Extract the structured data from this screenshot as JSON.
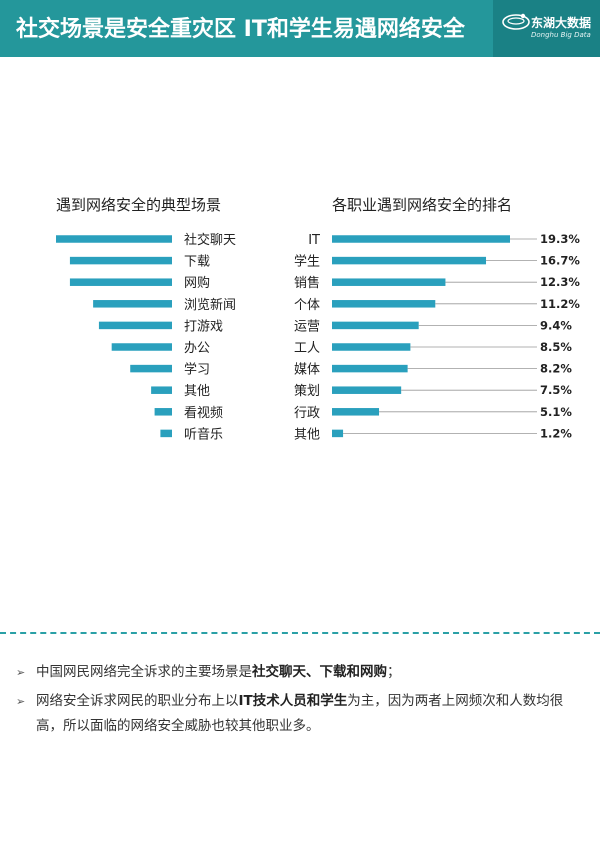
{
  "header": {
    "title": "社交场景是安全重灾区 IT和学生易遇网络安全",
    "logo_cn": "东湖大数据",
    "logo_en": "Donghu Big Data"
  },
  "colors": {
    "header_bg": "#24979b",
    "bar": "#2aa0bd",
    "divider": "#2aa0a6"
  },
  "chart_data": [
    {
      "type": "bar",
      "title": "遇到网络安全的典型场景",
      "orientation": "horizontal",
      "categories": [
        "社交聊天",
        "下载",
        "网购",
        "浏览新闻",
        "打游戏",
        "办公",
        "学习",
        "其他",
        "看视频",
        "听音乐"
      ],
      "values": [
        100,
        88,
        88,
        68,
        63,
        52,
        36,
        18,
        15,
        10
      ],
      "value_labels_shown": false
    },
    {
      "type": "bar",
      "title": "各职业遇到网络安全的排名",
      "orientation": "horizontal",
      "categories": [
        "IT",
        "学生",
        "销售",
        "个体",
        "运营",
        "工人",
        "媒体",
        "策划",
        "行政",
        "其他"
      ],
      "values": [
        19.3,
        16.7,
        12.3,
        11.2,
        9.4,
        8.5,
        8.2,
        7.5,
        5.1,
        1.2
      ],
      "labels": [
        "19.3%",
        "16.7%",
        "12.3%",
        "11.2%",
        "9.4%",
        "8.5%",
        "8.2%",
        "7.5%",
        "5.1%",
        "1.2%"
      ],
      "xlim": [
        0,
        19.3
      ]
    }
  ],
  "notes": [
    {
      "text_before": "中国网民网络完全诉求的主要场景是",
      "bold": "社交聊天、下载和网购",
      "text_after": "；"
    },
    {
      "text_before": "网络安全诉求网民的职业分布上以",
      "bold": "IT技术人员和学生",
      "text_after": "为主，因为两者上网频次和人数均很高，所以面临的网络安全威胁也较其他职业多。"
    }
  ]
}
